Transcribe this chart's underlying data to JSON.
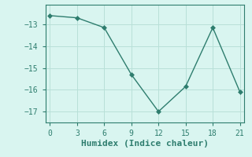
{
  "x": [
    0,
    3,
    6,
    9,
    12,
    15,
    18,
    21
  ],
  "y": [
    -12.6,
    -12.7,
    -13.15,
    -15.3,
    -17.0,
    -15.85,
    -13.15,
    -16.1
  ],
  "xlabel": "Humidex (Indice chaleur)",
  "line_color": "#2e7d6e",
  "marker": "D",
  "marker_size": 3,
  "bg_color": "#d9f5f0",
  "grid_color": "#b8e0d8",
  "tick_color": "#2e7d6e",
  "spine_color": "#2e7d6e",
  "xlim": [
    -0.5,
    21.5
  ],
  "ylim": [
    -17.5,
    -12.1
  ],
  "xticks": [
    0,
    3,
    6,
    9,
    12,
    15,
    18,
    21
  ],
  "yticks": [
    -17,
    -16,
    -15,
    -14,
    -13
  ],
  "font_family": "monospace",
  "xlabel_fontsize": 8,
  "tick_fontsize": 7,
  "linewidth": 1.0
}
